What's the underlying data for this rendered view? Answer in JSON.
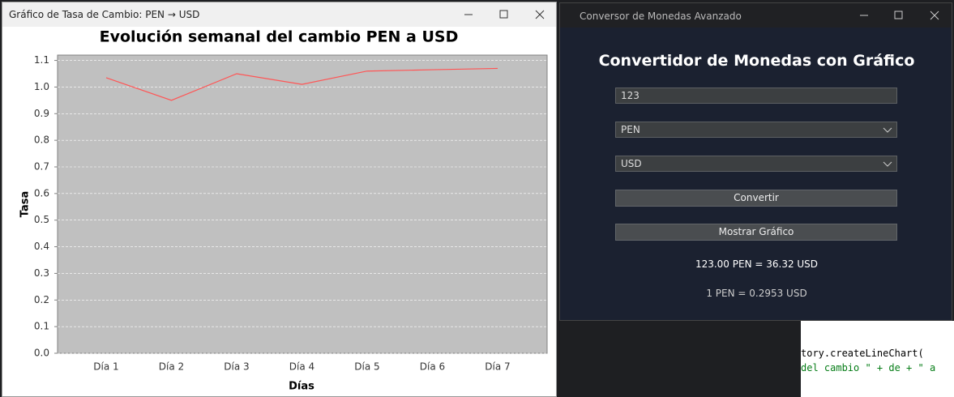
{
  "chart_window": {
    "title": "Gráfico de Tasa de Cambio: PEN → USD"
  },
  "chart_data": {
    "type": "line",
    "title": "Evolución semanal del cambio PEN a USD",
    "x_label": "Días",
    "y_label": "Tasa",
    "categories": [
      "Día 1",
      "Día 2",
      "Día 3",
      "Día 4",
      "Día 5",
      "Día 6",
      "Día 7"
    ],
    "values": [
      1.035,
      0.95,
      1.05,
      1.01,
      1.06,
      1.065,
      1.07
    ],
    "color": "#ff5555",
    "ylim": [
      0,
      1.12
    ],
    "yticks": [
      {
        "value": 0,
        "label": "0.0"
      },
      0.1,
      0.2,
      0.3,
      0.4,
      0.5,
      0.6,
      0.7,
      0.8,
      0.9,
      {
        "value": 1,
        "label": "1.0"
      },
      1.1
    ],
    "grid": true
  },
  "converter": {
    "window_title": "Conversor de Monedas Avanzado",
    "heading": "Convertidor de Monedas con Gráfico",
    "amount": "123",
    "from_currency": "PEN",
    "to_currency": "USD",
    "convert_button": "Convertir",
    "chart_button": "Mostrar Gráfico",
    "result": "123.00 PEN = 36.32 USD",
    "rate": "1 PEN = 0.2953 USD"
  },
  "background_code": {
    "line_1": "tory.createLineChart(",
    "line_2": "del cambio \" + de + \" a"
  }
}
